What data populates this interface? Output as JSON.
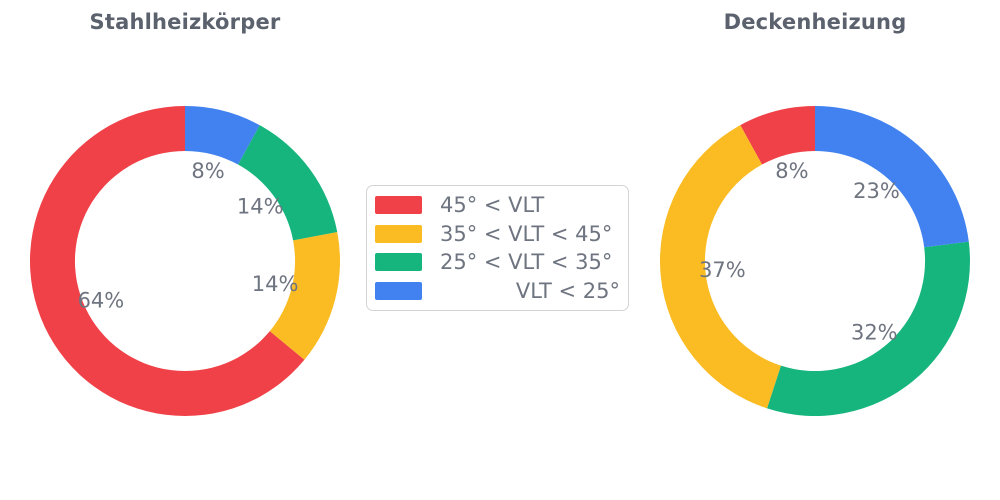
{
  "style": {
    "background": "#ffffff",
    "title_color": "#5b626e",
    "label_color": "#6e7480",
    "legend_border_color": "#d4d4d4",
    "palette": {
      "red": "#ef4147",
      "yellow": "#fbbc23",
      "green": "#16b57e",
      "blue": "#4182f0"
    }
  },
  "legend": {
    "entries": [
      {
        "label": "45° < VLT",
        "color": "#ef4147"
      },
      {
        "label": "35° < VLT < 45°",
        "color": "#fbbc23"
      },
      {
        "label": "25° < VLT < 35°",
        "color": "#16b57e"
      },
      {
        "label": "VLT < 25°",
        "color": "#4182f0"
      }
    ]
  },
  "chart_data": [
    {
      "type": "pie",
      "subtype": "donut",
      "title": "Stahlheizkörper",
      "categories": [
        "45° < VLT",
        "35° < VLT < 45°",
        "25° < VLT < 35°",
        "VLT < 25°"
      ],
      "values": [
        64,
        14,
        14,
        8
      ],
      "value_labels": [
        "64%",
        "14%",
        "14%",
        "8%"
      ],
      "colors": [
        "#ef4147",
        "#fbbc23",
        "#16b57e",
        "#4182f0"
      ],
      "start_angle": 90,
      "direction": "counterclockwise",
      "hole_ratio": 0.71,
      "pct_distance": 0.6
    },
    {
      "type": "pie",
      "subtype": "donut",
      "title": "Deckenheizung",
      "categories": [
        "45° < VLT",
        "35° < VLT < 45°",
        "25° < VLT < 35°",
        "VLT < 25°"
      ],
      "values": [
        8,
        37,
        32,
        23
      ],
      "value_labels": [
        "8%",
        "37%",
        "32%",
        "23%"
      ],
      "colors": [
        "#ef4147",
        "#fbbc23",
        "#16b57e",
        "#4182f0"
      ],
      "start_angle": 90,
      "direction": "counterclockwise",
      "hole_ratio": 0.71,
      "pct_distance": 0.6
    }
  ]
}
